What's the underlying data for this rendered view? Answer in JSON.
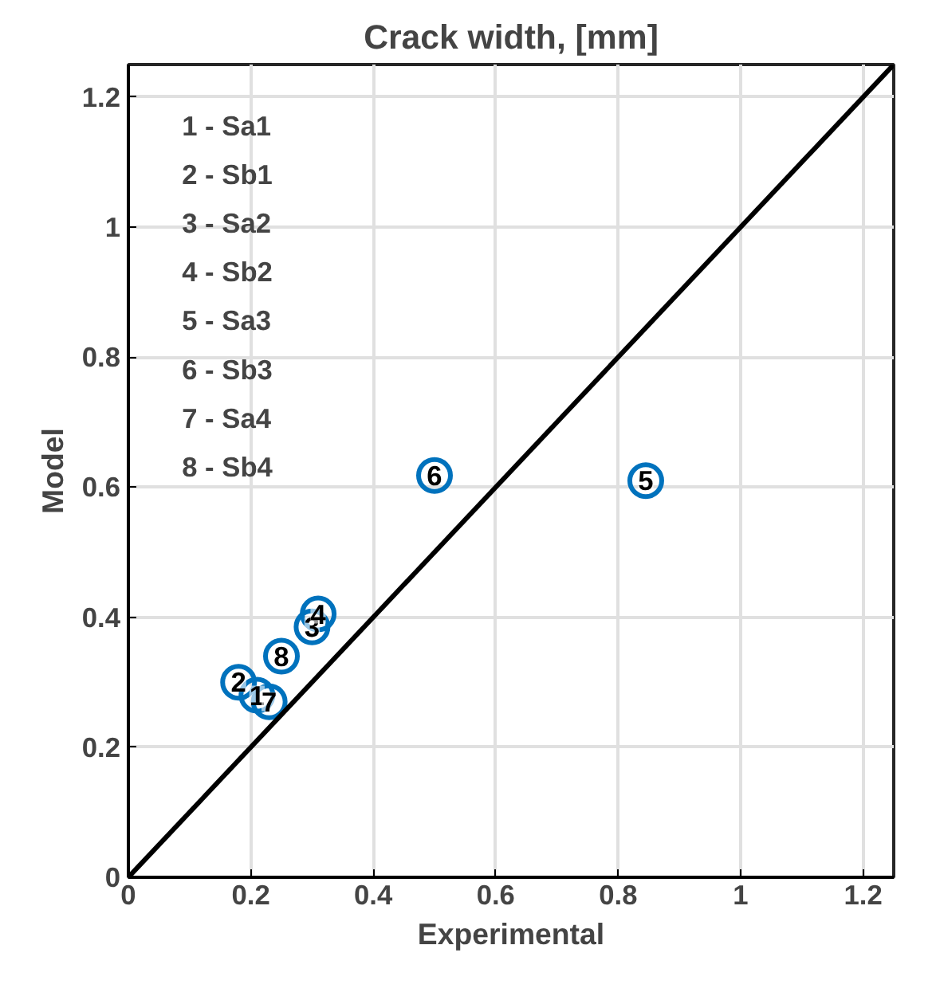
{
  "chart_data": {
    "type": "scatter",
    "title": "Crack width, [mm]",
    "xlabel": "Experimental",
    "ylabel": "Model",
    "xlim": [
      0,
      1.25
    ],
    "ylim": [
      0,
      1.25
    ],
    "xticks": [
      0,
      0.2,
      0.4,
      0.6,
      0.8,
      1,
      1.2
    ],
    "yticks": [
      0,
      0.2,
      0.4,
      0.6,
      0.8,
      1,
      1.2
    ],
    "grid": true,
    "annotations": [
      "1 - Sa1",
      "2 - Sb1",
      "3 - Sa2",
      "4 - Sb2",
      "5 - Sa3",
      "6 - Sb3",
      "7 - Sa4",
      "8 - Sb4",
      {
        "text": "1",
        "x": 0.21,
        "y": 0.28
      },
      {
        "text": "2",
        "x": 0.18,
        "y": 0.3
      },
      {
        "text": "3",
        "x": 0.3,
        "y": 0.385
      },
      {
        "text": "4",
        "x": 0.31,
        "y": 0.405
      },
      {
        "text": "5",
        "x": 0.845,
        "y": 0.61
      },
      {
        "text": "6",
        "x": 0.5,
        "y": 0.618
      },
      {
        "text": "7",
        "x": 0.23,
        "y": 0.27
      },
      {
        "text": "8",
        "x": 0.25,
        "y": 0.34
      }
    ],
    "series": [
      {
        "color": "#0072bd",
        "marker": "circle",
        "x": [
          0.21,
          0.18,
          0.3,
          0.31,
          0.845,
          0.5,
          0.23,
          0.25
        ],
        "values": [
          0.28,
          0.3,
          0.385,
          0.405,
          0.61,
          0.618,
          0.27,
          0.34
        ]
      },
      {
        "type": "line",
        "color": "#000000",
        "line_style": "solid",
        "x": [
          0,
          1.25
        ],
        "values": [
          0,
          1.25
        ]
      }
    ]
  }
}
